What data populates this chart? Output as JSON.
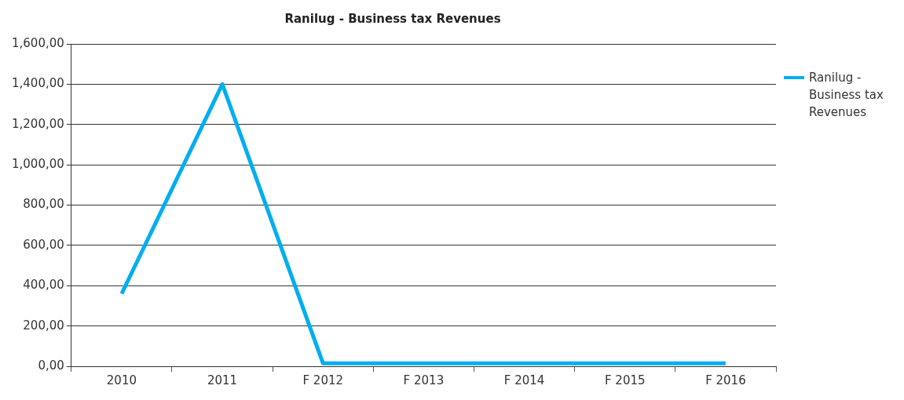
{
  "chart_data": {
    "type": "line",
    "title": "Ranilug - Business tax Revenues",
    "categories": [
      "2010",
      "2011",
      "F 2012",
      "F 2013",
      "F 2014",
      "F 2015",
      "F 2016"
    ],
    "series": [
      {
        "name": "Ranilug - Business tax Revenues",
        "color": "#00aeef",
        "values": [
          360,
          1400,
          15,
          15,
          15,
          15,
          15
        ]
      }
    ],
    "ylim": [
      0,
      1600
    ],
    "yticks": [
      {
        "value": 0,
        "label": "0,00"
      },
      {
        "value": 200,
        "label": "200,00"
      },
      {
        "value": 400,
        "label": "400,00"
      },
      {
        "value": 600,
        "label": "600,00"
      },
      {
        "value": 800,
        "label": "800,00"
      },
      {
        "value": 1000,
        "label": "1,000,00"
      },
      {
        "value": 1200,
        "label": "1,200,00"
      },
      {
        "value": 1400,
        "label": "1,400,00"
      },
      {
        "value": 1600,
        "label": "1,600,00"
      }
    ],
    "grid": "y",
    "legend": "right",
    "marker": "none",
    "line_style": "solid"
  }
}
